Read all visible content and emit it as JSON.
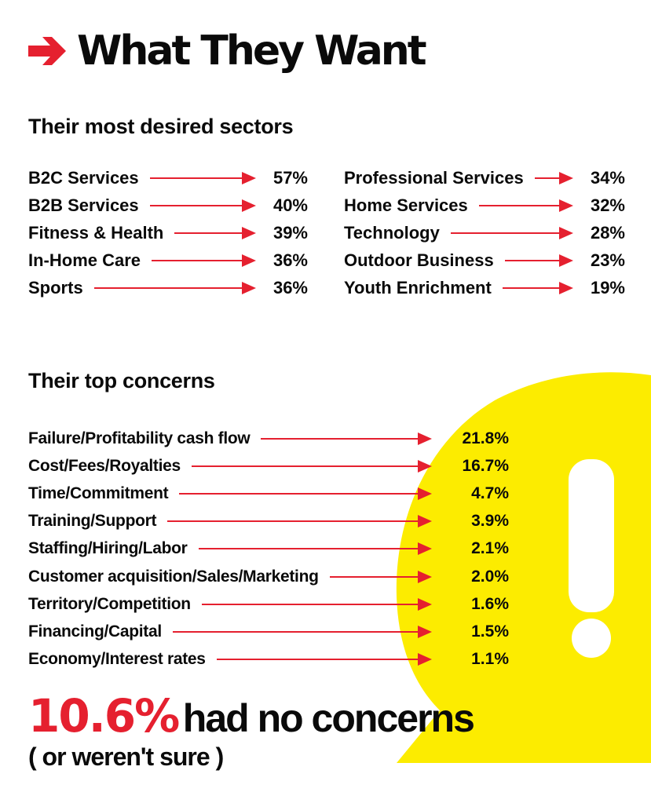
{
  "title": "What They Want",
  "colors": {
    "accent": "#e5202f",
    "highlight": "#fcec00",
    "text": "#0a0a0a"
  },
  "sectors": {
    "heading": "Their most desired sectors",
    "left": [
      {
        "label": "B2C Services",
        "value": "57%"
      },
      {
        "label": "B2B Services",
        "value": "40%"
      },
      {
        "label": "Fitness & Health",
        "value": "39%"
      },
      {
        "label": "In-Home Care",
        "value": "36%"
      },
      {
        "label": "Sports",
        "value": "36%"
      }
    ],
    "right": [
      {
        "label": "Professional Services",
        "value": "34%"
      },
      {
        "label": "Home Services",
        "value": "32%"
      },
      {
        "label": "Technology",
        "value": "28%"
      },
      {
        "label": "Outdoor Business",
        "value": "23%"
      },
      {
        "label": "Youth Enrichment",
        "value": "19%"
      }
    ]
  },
  "concerns": {
    "heading": "Their top concerns",
    "items": [
      {
        "label": "Failure/Profitability cash flow",
        "value": "21.8%"
      },
      {
        "label": "Cost/Fees/Royalties",
        "value": "16.7%"
      },
      {
        "label": "Time/Commitment",
        "value": "4.7%"
      },
      {
        "label": "Training/Support",
        "value": "3.9%"
      },
      {
        "label": "Staffing/Hiring/Labor",
        "value": "2.1%"
      },
      {
        "label": "Customer acquisition/Sales/Marketing",
        "value": "2.0%"
      },
      {
        "label": "Territory/Competition",
        "value": "1.6%"
      },
      {
        "label": "Financing/Capital",
        "value": "1.5%"
      },
      {
        "label": "Economy/Interest rates",
        "value": "1.1%"
      }
    ]
  },
  "no_concerns": {
    "percent": "10.6%",
    "text": "had no concerns",
    "subtext": "( or weren't sure )"
  },
  "icons": {
    "title_arrow": "right-arrow-icon",
    "exclamation": "exclamation-icon"
  }
}
